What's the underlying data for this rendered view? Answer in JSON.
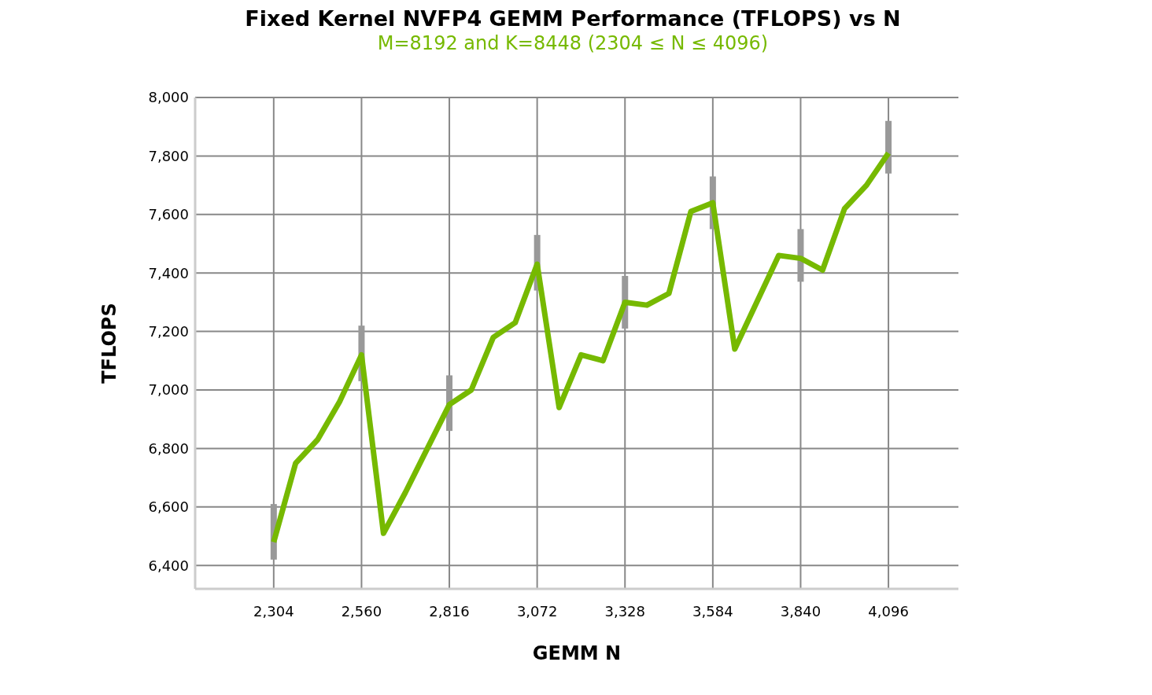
{
  "chart_data": {
    "type": "line",
    "title": "Fixed Kernel NVFP4 GEMM Performance (TFLOPS) vs N",
    "subtitle": "M=8192 and K=8448 (2304 ≤ N ≤ 4096)",
    "xlabel": "GEMM N",
    "ylabel": "TFLOPS",
    "x": [
      2304,
      2368,
      2432,
      2496,
      2560,
      2624,
      2688,
      2752,
      2816,
      2880,
      2944,
      3008,
      3072,
      3136,
      3200,
      3264,
      3328,
      3392,
      3456,
      3520,
      3584,
      3648,
      3712,
      3776,
      3840,
      3904,
      3968,
      4032,
      4096
    ],
    "series": [
      {
        "color": "#76b900",
        "values": [
          6480,
          6750,
          6830,
          6960,
          7120,
          6510,
          6650,
          6800,
          6950,
          7000,
          7180,
          7230,
          7430,
          6940,
          7120,
          7100,
          7300,
          7290,
          7330,
          7610,
          7640,
          7140,
          7300,
          7460,
          7450,
          7410,
          7620,
          7700,
          7810
        ],
        "errors": [
          [
            6420,
            6610
          ],
          null,
          null,
          null,
          [
            7030,
            7220
          ],
          null,
          null,
          null,
          [
            6860,
            7050
          ],
          null,
          null,
          null,
          [
            7340,
            7530
          ],
          null,
          null,
          null,
          [
            7210,
            7390
          ],
          null,
          null,
          null,
          [
            7550,
            7730
          ],
          null,
          null,
          null,
          [
            7370,
            7550
          ],
          null,
          null,
          null,
          [
            7740,
            7920
          ]
        ]
      }
    ],
    "xlim": [
      2075,
      4300
    ],
    "xticks": [
      {
        "value": 2304,
        "label": "2,304"
      },
      {
        "value": 2560,
        "label": "2,560"
      },
      {
        "value": 2816,
        "label": "2,816"
      },
      {
        "value": 3072,
        "label": "3,072"
      },
      {
        "value": 3328,
        "label": "3,328"
      },
      {
        "value": 3584,
        "label": "3,584"
      },
      {
        "value": 3840,
        "label": "3,840"
      },
      {
        "value": 4096,
        "label": "4,096"
      }
    ],
    "ylim": [
      6320,
      8000
    ],
    "yticks": [
      {
        "value": 6400,
        "label": "6,400"
      },
      {
        "value": 6600,
        "label": "6,600"
      },
      {
        "value": 6800,
        "label": "6,800"
      },
      {
        "value": 7000,
        "label": "7,000"
      },
      {
        "value": 7200,
        "label": "7,200"
      },
      {
        "value": 7400,
        "label": "7,400"
      },
      {
        "value": 7600,
        "label": "7,600"
      },
      {
        "value": 7800,
        "label": "7,800"
      },
      {
        "value": 8000,
        "label": "8,000"
      }
    ],
    "grid": true,
    "marker": "none",
    "line_style": "solid"
  }
}
